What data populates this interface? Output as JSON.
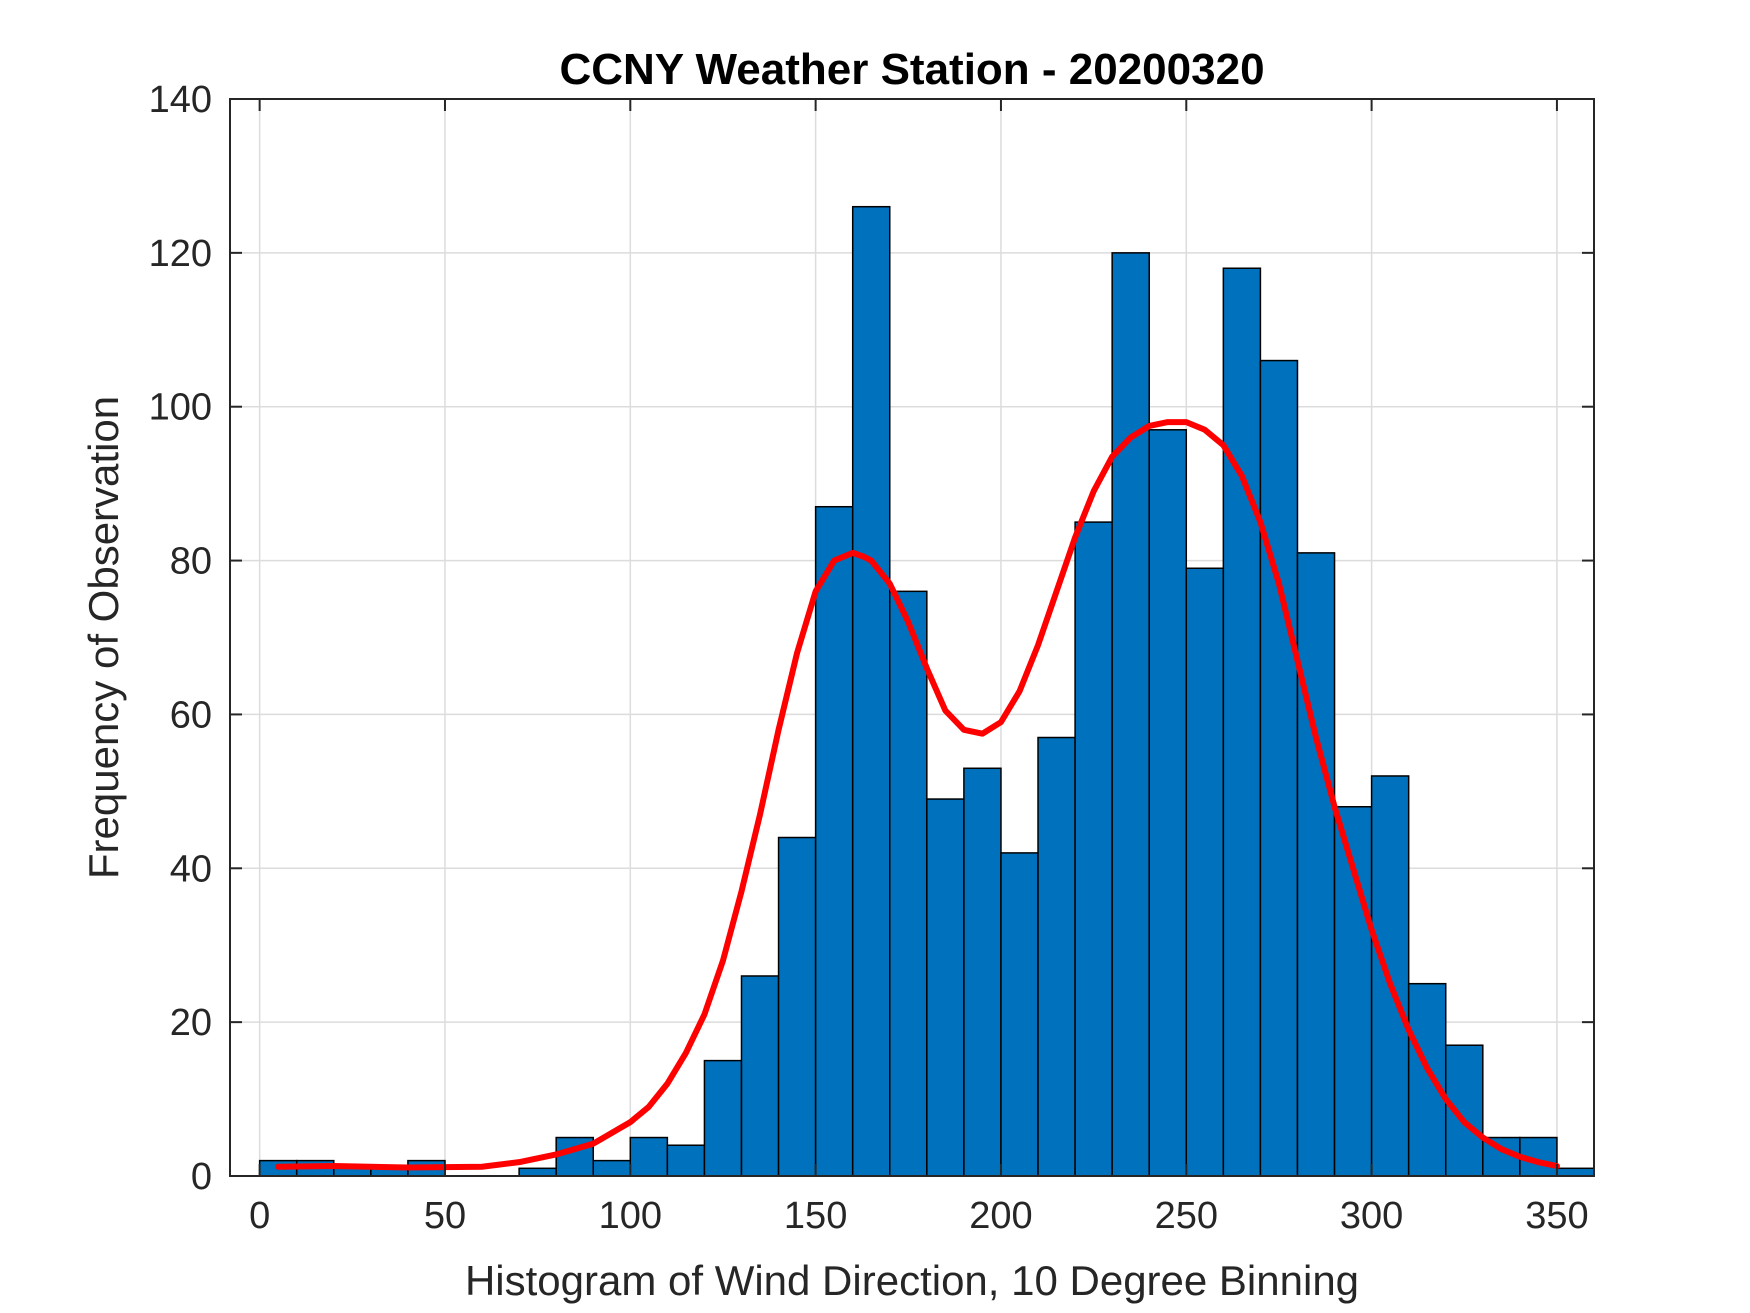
{
  "chart_data": {
    "type": "bar",
    "title": "CCNY Weather Station - 20200320",
    "xlabel": "Histogram of Wind Direction, 10 Degree Binning",
    "ylabel": "Frequency of Observation",
    "xlim": [
      -8,
      360
    ],
    "ylim": [
      0,
      140
    ],
    "xticks": [
      0,
      50,
      100,
      150,
      200,
      250,
      300,
      350
    ],
    "yticks": [
      0,
      20,
      40,
      60,
      80,
      100,
      120,
      140
    ],
    "grid": true,
    "bin_width": 10,
    "bins": {
      "left_edges": [
        0,
        10,
        20,
        30,
        40,
        50,
        60,
        70,
        80,
        90,
        100,
        110,
        120,
        130,
        140,
        150,
        160,
        170,
        180,
        190,
        200,
        210,
        220,
        230,
        240,
        250,
        260,
        270,
        280,
        290,
        300,
        310,
        320,
        330,
        340,
        350
      ],
      "values": [
        2,
        2,
        1,
        1,
        2,
        0,
        0,
        1,
        5,
        2,
        5,
        4,
        15,
        26,
        44,
        87,
        126,
        76,
        49,
        53,
        42,
        57,
        85,
        120,
        97,
        79,
        118,
        106,
        81,
        48,
        52,
        25,
        17,
        5,
        5,
        1
      ]
    },
    "bar_color": "#0072BD",
    "bar_edge_color": "#000000",
    "fit_line": {
      "color": "#FF0000",
      "x": [
        5,
        20,
        40,
        60,
        70,
        80,
        90,
        100,
        105,
        110,
        115,
        120,
        125,
        130,
        135,
        140,
        145,
        150,
        155,
        160,
        163,
        165,
        170,
        175,
        180,
        185,
        190,
        195,
        200,
        205,
        210,
        215,
        220,
        225,
        230,
        235,
        240,
        245,
        250,
        255,
        260,
        265,
        270,
        275,
        280,
        285,
        290,
        295,
        300,
        305,
        310,
        315,
        320,
        325,
        330,
        335,
        340,
        345,
        350
      ],
      "y": [
        1.2,
        1.3,
        1.1,
        1.2,
        1.8,
        2.8,
        4.2,
        7,
        9,
        12,
        16,
        21,
        28,
        37,
        47,
        58,
        68,
        76,
        80,
        81,
        80.5,
        80,
        77,
        72,
        66,
        60.5,
        58,
        57.5,
        59,
        63,
        69,
        76,
        83,
        89,
        93.5,
        96,
        97.5,
        98,
        98,
        97,
        95,
        91,
        85,
        77,
        67,
        57,
        48,
        40,
        32,
        25,
        19,
        14,
        10,
        7,
        5,
        3.5,
        2.5,
        1.8,
        1.3
      ]
    }
  }
}
